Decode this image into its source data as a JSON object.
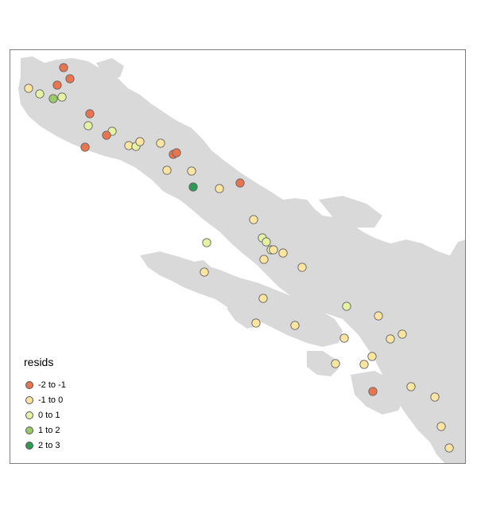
{
  "legend": {
    "title": "resids",
    "items": [
      {
        "label": "-2 to -1",
        "color": "#e8754d"
      },
      {
        "label": "-1 to 0",
        "color": "#fbe5a0"
      },
      {
        "label": "0 to 1",
        "color": "#e5f1a3"
      },
      {
        "label": "1 to 2",
        "color": "#99cc66"
      },
      {
        "label": "2 to 3",
        "color": "#2e9a55"
      }
    ]
  },
  "colors": {
    "land": "#d9d9d9",
    "point_border": "#666666",
    "frame": "#7f7f7f"
  },
  "points": [
    {
      "cls": 0
    },
    {
      "cls": 0
    },
    {
      "cls": 0
    },
    {
      "cls": 1
    },
    {
      "cls": 2
    },
    {
      "cls": 2
    },
    {
      "cls": 3
    },
    {
      "cls": 0
    },
    {
      "cls": 2
    },
    {
      "cls": 2
    },
    {
      "cls": 0
    },
    {
      "cls": 0
    },
    {
      "cls": 1
    },
    {
      "cls": 2
    },
    {
      "cls": 1
    },
    {
      "cls": 1
    },
    {
      "cls": 0
    },
    {
      "cls": 0
    },
    {
      "cls": 1
    },
    {
      "cls": 1
    },
    {
      "cls": 4
    },
    {
      "cls": 1
    },
    {
      "cls": 0
    },
    {
      "cls": 1
    },
    {
      "cls": 2
    },
    {
      "cls": 2
    },
    {
      "cls": 2
    },
    {
      "cls": 1
    },
    {
      "cls": 1
    },
    {
      "cls": 1
    },
    {
      "cls": 1
    },
    {
      "cls": 1
    },
    {
      "cls": 1
    },
    {
      "cls": 2
    },
    {
      "cls": 1
    },
    {
      "cls": 1
    },
    {
      "cls": 1
    },
    {
      "cls": 1
    },
    {
      "cls": 1
    },
    {
      "cls": 1
    },
    {
      "cls": 1
    },
    {
      "cls": 0
    },
    {
      "cls": 1
    },
    {
      "cls": 1
    },
    {
      "cls": 1
    },
    {
      "cls": 1
    }
  ]
}
